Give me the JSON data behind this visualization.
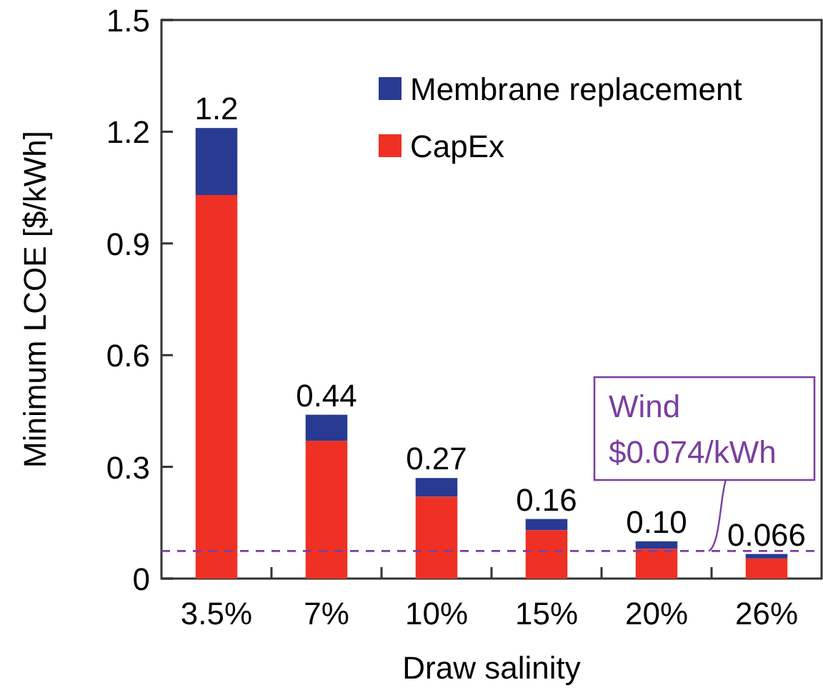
{
  "chart_data": {
    "type": "bar",
    "stacked": true,
    "xlabel": "Draw salinity",
    "ylabel": "Minimum LCOE [$/kWh]",
    "categories": [
      "3.5%",
      "7%",
      "10%",
      "15%",
      "20%",
      "26%"
    ],
    "series": [
      {
        "name": "CapEx",
        "color": "#ee3124",
        "values": [
          1.03,
          0.37,
          0.22,
          0.13,
          0.08,
          0.054
        ]
      },
      {
        "name": "Membrane replacement",
        "color": "#283a92",
        "values": [
          0.18,
          0.07,
          0.05,
          0.03,
          0.02,
          0.012
        ]
      }
    ],
    "totals": [
      "1.2",
      "0.44",
      "0.27",
      "0.16",
      "0.10",
      "0.066"
    ],
    "ylim": [
      0,
      1.5
    ],
    "yticks": [
      0,
      0.3,
      0.6,
      0.9,
      1.2,
      1.5
    ],
    "ref_lines": [
      {
        "axis": "y",
        "value": 0.074,
        "label": "Wind $0.074/kWh",
        "color": "#7b3f9e",
        "line_style": "dashed"
      }
    ],
    "legend": "top right"
  }
}
